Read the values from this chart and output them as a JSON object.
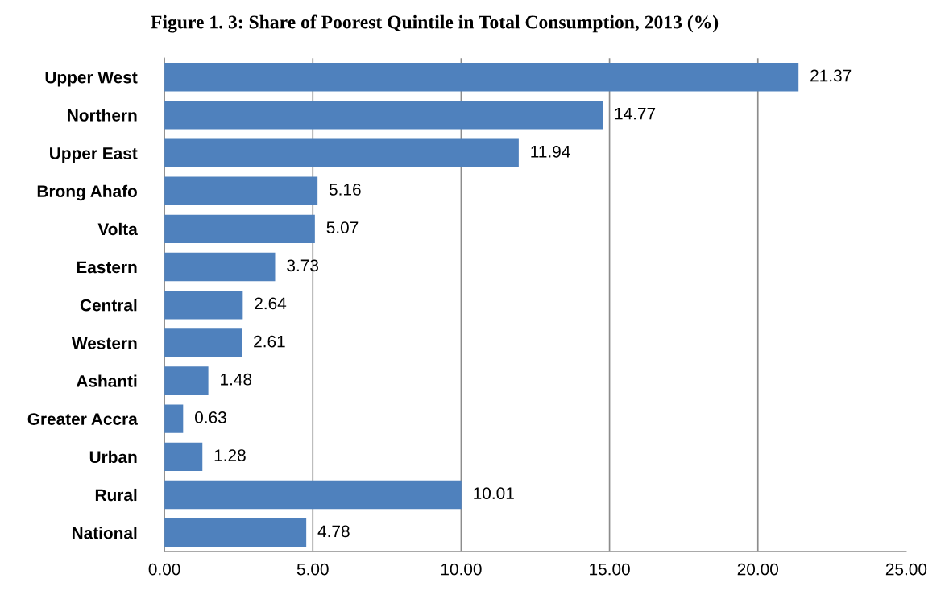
{
  "chart_data": {
    "type": "bar",
    "orientation": "horizontal",
    "title": "Figure 1. 3: Share of Poorest Quintile in Total Consumption, 2013 (%)",
    "categories": [
      "Upper West",
      "Northern",
      "Upper East",
      "Brong Ahafo",
      "Volta",
      "Eastern",
      "Central",
      "Western",
      "Ashanti",
      "Greater Accra",
      "Urban",
      "Rural",
      "National"
    ],
    "values": [
      21.37,
      14.77,
      11.94,
      5.16,
      5.07,
      3.73,
      2.64,
      2.61,
      1.48,
      0.63,
      1.28,
      10.01,
      4.78
    ],
    "color": "#4f81bd",
    "xlim": [
      0,
      25
    ],
    "xticks": [
      {
        "value": 0,
        "label": "0.00"
      },
      {
        "value": 5,
        "label": "5.00"
      },
      {
        "value": 10,
        "label": "10.00"
      },
      {
        "value": 15,
        "label": "15.00"
      },
      {
        "value": 20,
        "label": "20.00"
      },
      {
        "value": 25,
        "label": "25.00"
      }
    ],
    "grid": "x",
    "data_labels": true,
    "legend": false
  }
}
